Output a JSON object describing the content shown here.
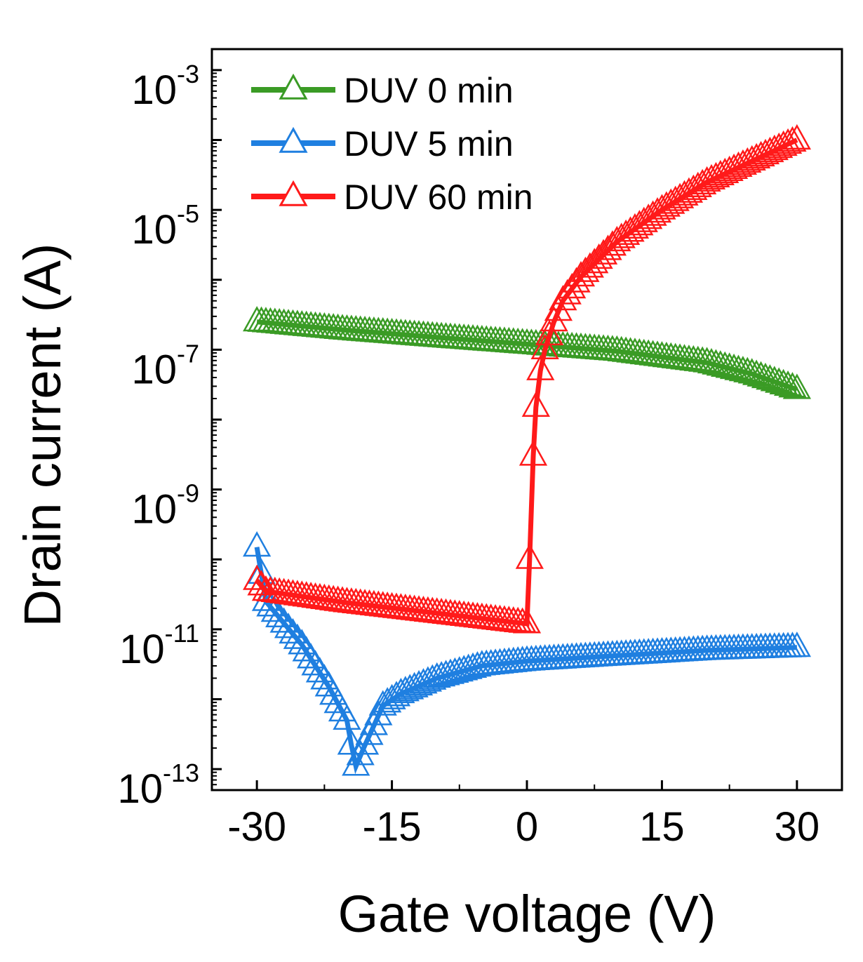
{
  "chart_data": {
    "type": "line",
    "xlabel": "Gate voltage (V)",
    "ylabel": "Drain current (A)",
    "xlim": [
      -35,
      35
    ],
    "ylim_log10": [
      -13.3,
      -2.7
    ],
    "yscale": "log",
    "grid": false,
    "legend_position": "top-left",
    "x_ticks": [
      {
        "value": -30,
        "label": "-30"
      },
      {
        "value": -15,
        "label": "-15"
      },
      {
        "value": 0,
        "label": "0"
      },
      {
        "value": 15,
        "label": "15"
      },
      {
        "value": 30,
        "label": "30"
      }
    ],
    "y_ticks": [
      {
        "exp": -13,
        "base": "10",
        "sup": "-13"
      },
      {
        "exp": -11,
        "base": "10",
        "sup": "-11"
      },
      {
        "exp": -9,
        "base": "10",
        "sup": "-9"
      },
      {
        "exp": -7,
        "base": "10",
        "sup": "-7"
      },
      {
        "exp": -5,
        "base": "10",
        "sup": "-5"
      },
      {
        "exp": -3,
        "base": "10",
        "sup": "-3"
      }
    ],
    "series": [
      {
        "name": "DUV 0 min",
        "color": "#3a9b25",
        "points": [
          [
            -30,
            2.5e-07
          ],
          [
            -20,
            1.9e-07
          ],
          [
            -10,
            1.5e-07
          ],
          [
            0,
            1.2e-07
          ],
          [
            10,
            9.5e-08
          ],
          [
            20,
            6.5e-08
          ],
          [
            25,
            4.5e-08
          ],
          [
            30,
            2.7e-08
          ]
        ]
      },
      {
        "name": "DUV 5 min",
        "color": "#1f7fe0",
        "points": [
          [
            -30,
            1.5e-10
          ],
          [
            -29,
            2.5e-11
          ],
          [
            -25,
            6e-12
          ],
          [
            -22,
            1.5e-12
          ],
          [
            -20,
            5e-13
          ],
          [
            -19.5,
            2.2e-13
          ],
          [
            -19,
            1.1e-13
          ],
          [
            -18,
            2.2e-13
          ],
          [
            -16,
            8e-13
          ],
          [
            -14,
            1.2e-12
          ],
          [
            -10,
            2e-12
          ],
          [
            -5,
            3e-12
          ],
          [
            0,
            3.5e-12
          ],
          [
            10,
            4.2e-12
          ],
          [
            20,
            5e-12
          ],
          [
            30,
            5.5e-12
          ]
        ]
      },
      {
        "name": "DUV 60 min",
        "color": "#ff1a1a",
        "points": [
          [
            -30,
            5e-11
          ],
          [
            -29,
            3.5e-11
          ],
          [
            -20,
            2.4e-11
          ],
          [
            -10,
            1.7e-11
          ],
          [
            0,
            1.2e-11
          ],
          [
            0.3,
            1e-10
          ],
          [
            0.7,
            3e-09
          ],
          [
            1,
            1.5e-08
          ],
          [
            1.5,
            5e-08
          ],
          [
            2,
            1e-07
          ],
          [
            3,
            2.5e-07
          ],
          [
            4,
            5e-07
          ],
          [
            6,
            1.1e-06
          ],
          [
            10,
            3.5e-06
          ],
          [
            15,
            1e-05
          ],
          [
            20,
            2.5e-05
          ],
          [
            25,
            5e-05
          ],
          [
            30,
            0.0001
          ]
        ]
      }
    ]
  }
}
